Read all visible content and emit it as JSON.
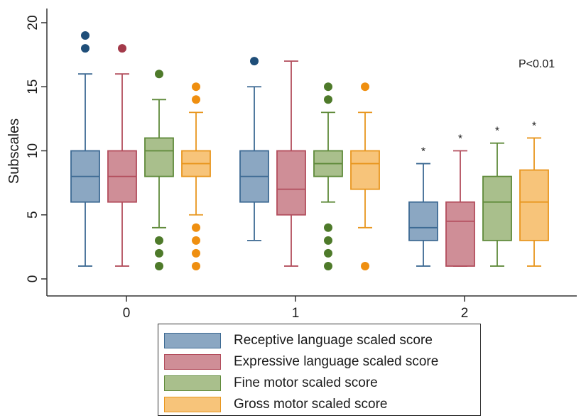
{
  "chart_data": {
    "type": "box",
    "ylabel": "Subscales",
    "ylim": [
      0,
      20
    ],
    "yticks": [
      0,
      5,
      10,
      15,
      20
    ],
    "categories": [
      "0",
      "1",
      "2"
    ],
    "annotation": "P<0.01",
    "grid": false,
    "legend_position": "bottom",
    "series": [
      {
        "name": "Receptive language scaled score",
        "fill": "#8ba7c2",
        "stroke": "#3d6a93",
        "outlier_color": "#1f4e79",
        "boxes": [
          {
            "whisker_low": 1,
            "q1": 6,
            "median": 8,
            "q3": 10,
            "whisker_high": 16,
            "outliers": [
              18,
              19
            ]
          },
          {
            "whisker_low": 3,
            "q1": 6,
            "median": 8,
            "q3": 10,
            "whisker_high": 15,
            "outliers": [
              17
            ]
          },
          {
            "whisker_low": 1,
            "q1": 3,
            "median": 4,
            "q3": 6,
            "whisker_high": 9,
            "outliers": [],
            "marker": "*"
          }
        ]
      },
      {
        "name": "Expressive language scaled score",
        "fill": "#cf8e97",
        "stroke": "#b24d5c",
        "outlier_color": "#a33a4a",
        "boxes": [
          {
            "whisker_low": 1,
            "q1": 6,
            "median": 8,
            "q3": 10,
            "whisker_high": 16,
            "outliers": [
              18
            ]
          },
          {
            "whisker_low": 1,
            "q1": 5,
            "median": 7,
            "q3": 10,
            "whisker_high": 17,
            "outliers": []
          },
          {
            "whisker_low": 1,
            "q1": 1,
            "median": 4.5,
            "q3": 6,
            "whisker_high": 10,
            "outliers": [],
            "marker": "*"
          }
        ]
      },
      {
        "name": "Fine motor scaled score",
        "fill": "#a9bf8c",
        "stroke": "#5f8a3a",
        "outlier_color": "#4e7a2a",
        "boxes": [
          {
            "whisker_low": 4,
            "q1": 8,
            "median": 10,
            "q3": 11,
            "whisker_high": 14,
            "outliers": [
              16,
              3,
              2,
              1
            ]
          },
          {
            "whisker_low": 6,
            "q1": 8,
            "median": 9,
            "q3": 10,
            "whisker_high": 13,
            "outliers": [
              15,
              14,
              4,
              3,
              2,
              1
            ]
          },
          {
            "whisker_low": 1,
            "q1": 3,
            "median": 6,
            "q3": 8,
            "whisker_high": 10.6,
            "outliers": [],
            "marker": "*"
          }
        ]
      },
      {
        "name": "Gross motor scaled score",
        "fill": "#f7c47a",
        "stroke": "#e8961e",
        "outlier_color": "#ef8f10",
        "boxes": [
          {
            "whisker_low": 5,
            "q1": 8,
            "median": 9,
            "q3": 10,
            "whisker_high": 13,
            "outliers": [
              15,
              14,
              4,
              3,
              2,
              1
            ]
          },
          {
            "whisker_low": 4,
            "q1": 7,
            "median": 9,
            "q3": 10,
            "whisker_high": 13,
            "outliers": [
              15,
              1
            ]
          },
          {
            "whisker_low": 1,
            "q1": 3,
            "median": 6,
            "q3": 8.5,
            "whisker_high": 11,
            "outliers": [],
            "marker": "*"
          }
        ]
      }
    ]
  }
}
